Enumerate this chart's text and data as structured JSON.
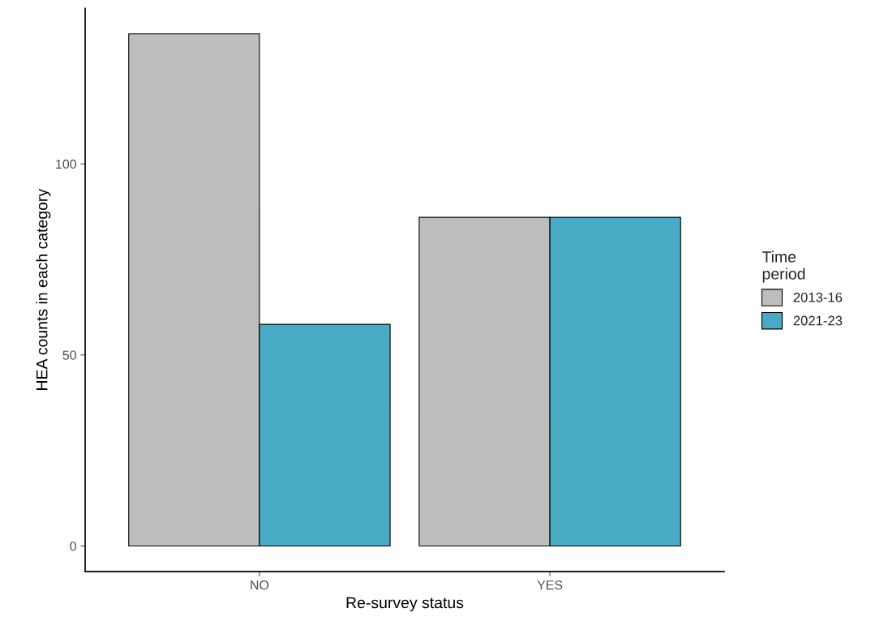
{
  "chart_data": {
    "type": "bar",
    "xlabel": "Re-survey status",
    "ylabel": "HEA counts in each category",
    "legend_title": "Time\nperiod",
    "categories": [
      "NO",
      "YES"
    ],
    "series": [
      {
        "name": "2013-16",
        "color": "#bebebe",
        "values": [
          134,
          86
        ]
      },
      {
        "name": "2021-23",
        "color": "#49aac5",
        "values": [
          58,
          86
        ]
      }
    ],
    "ylim": [
      -6.7,
      140.7
    ],
    "yticks": [
      0,
      50,
      100
    ],
    "grid": false,
    "legend": "right"
  }
}
